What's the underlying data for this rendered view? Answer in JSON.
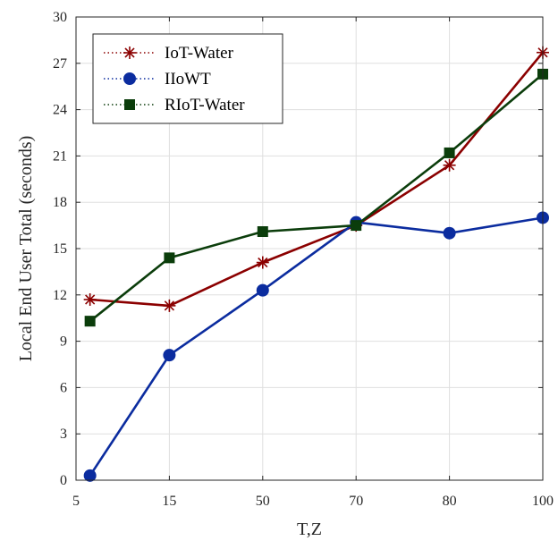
{
  "chart_data": {
    "type": "line",
    "xlabel": "T,Z",
    "ylabel": "Local End User Total (seconds)",
    "categories": [
      "5",
      "15",
      "50",
      "70",
      "80",
      "100"
    ],
    "ylim": [
      0,
      30
    ],
    "yticks": [
      0,
      3,
      6,
      9,
      12,
      15,
      18,
      21,
      24,
      27,
      30
    ],
    "grid": true,
    "legend_position": "top-left",
    "series": [
      {
        "name": "IoT-Water",
        "color": "#8b0000",
        "marker": "asterisk",
        "x": [
          0.15,
          1,
          2,
          3,
          4,
          5
        ],
        "values": [
          11.7,
          11.3,
          14.1,
          16.5,
          20.4,
          27.7
        ]
      },
      {
        "name": "IIoWT",
        "color": "#0b2c9f",
        "marker": "circle",
        "x": [
          0.15,
          1,
          2,
          3,
          4,
          5
        ],
        "values": [
          0.3,
          8.1,
          12.3,
          16.7,
          16.0,
          17.0
        ]
      },
      {
        "name": "RIoT-Water",
        "color": "#0b3d0b",
        "marker": "square",
        "x": [
          0.15,
          1,
          2,
          3,
          4,
          5
        ],
        "values": [
          10.3,
          14.4,
          16.1,
          16.5,
          21.2,
          26.3
        ]
      }
    ]
  }
}
